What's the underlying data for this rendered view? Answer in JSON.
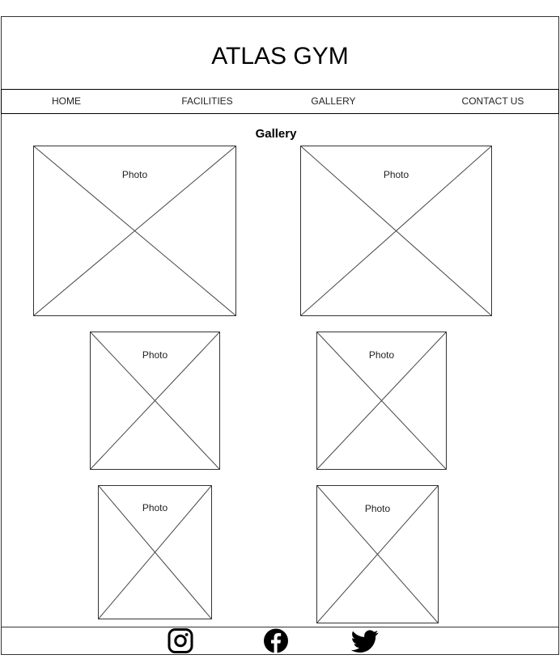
{
  "header": {
    "title": "ATLAS GYM"
  },
  "nav": {
    "items": [
      "HOME",
      "FACILITIES",
      "GALLERY",
      "CONTACT US"
    ]
  },
  "gallery": {
    "heading": "Gallery",
    "photo_label": "Photo"
  },
  "footer": {
    "icons": [
      "instagram-icon",
      "facebook-icon",
      "twitter-icon"
    ]
  }
}
